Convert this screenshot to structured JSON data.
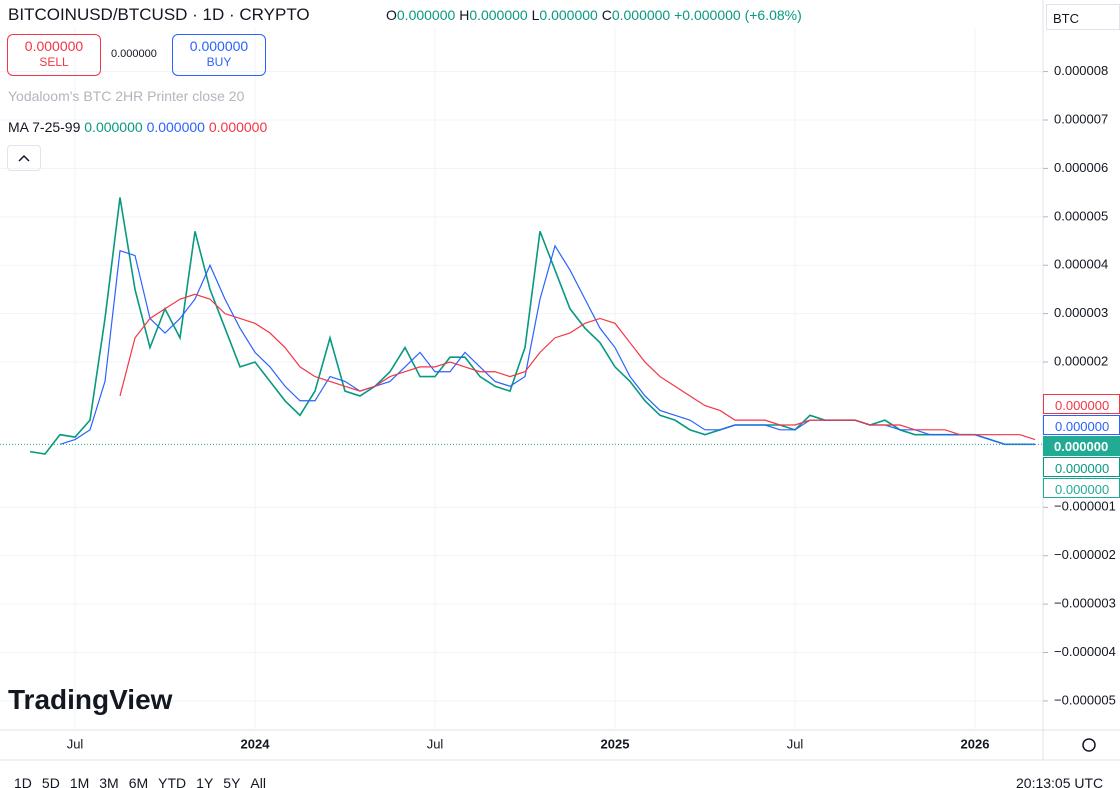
{
  "header": {
    "symbol": "BITCOINUSD/BTCUSD · 1D · CRYPTO",
    "ohlc": [
      {
        "label": "O",
        "value": "0.000000"
      },
      {
        "label": "H",
        "value": "0.000000"
      },
      {
        "label": "L",
        "value": "0.000000"
      },
      {
        "label": "C",
        "value": "0.000000"
      }
    ],
    "change": "+0.000000 (+6.08%)",
    "sell": {
      "price": "0.000000",
      "label": "SELL"
    },
    "spread": "0.000000",
    "buy": {
      "price": "0.000000",
      "label": "BUY"
    },
    "indicator": "Yodaloom's BTC 2HR Printer close 20",
    "ma": {
      "title": "MA 7-25-99",
      "values": [
        "0.000000",
        "0.000000",
        "0.000000"
      ]
    },
    "currency": "BTC",
    "watermark": "TradingView"
  },
  "price_scale": [
    "0.000000",
    "0.000000",
    "0.000000",
    "0.000000",
    "0.000000"
  ],
  "footer": {
    "timeframes": [
      "1D",
      "5D",
      "1M",
      "3M",
      "6M",
      "YTD",
      "1Y",
      "5Y",
      "All"
    ],
    "clock": "20:13:05 UTC"
  },
  "chart_data": {
    "type": "line",
    "categories": [
      null,
      null,
      null,
      "Jul",
      null,
      null,
      null,
      null,
      null,
      null,
      null,
      null,
      null,
      null,
      null,
      "2024",
      null,
      null,
      null,
      null,
      null,
      null,
      null,
      null,
      null,
      null,
      null,
      "Jul",
      null,
      null,
      null,
      null,
      null,
      null,
      null,
      null,
      null,
      null,
      null,
      "2025",
      null,
      null,
      null,
      null,
      null,
      null,
      null,
      null,
      null,
      null,
      null,
      "Jul",
      null,
      null,
      null,
      null,
      null,
      null,
      null,
      null,
      null,
      null,
      null,
      "2026",
      null,
      null,
      null,
      null
    ],
    "series": [
      {
        "color": "#089981",
        "values": [
          1.5e-07,
          1e-07,
          5e-07,
          4.5e-07,
          8e-07,
          2.9e-06,
          5.4e-06,
          3.5e-06,
          2.3e-06,
          3.1e-06,
          2.5e-06,
          4.7e-06,
          3.5e-06,
          2.7e-06,
          1.9e-06,
          2e-06,
          1.6e-06,
          1.2e-06,
          9e-07,
          1.4e-06,
          2.5e-06,
          1.4e-06,
          1.3e-06,
          1.5e-06,
          1.8e-06,
          2.3e-06,
          1.7e-06,
          1.7e-06,
          2.1e-06,
          2.1e-06,
          1.7e-06,
          1.5e-06,
          1.4e-06,
          2.3e-06,
          4.7e-06,
          3.9e-06,
          3.1e-06,
          2.7e-06,
          2.4e-06,
          1.9e-06,
          1.6e-06,
          1.2e-06,
          9e-07,
          8e-07,
          6e-07,
          5e-07,
          6e-07,
          7e-07,
          7e-07,
          7e-07,
          7e-07,
          6e-07,
          9e-07,
          8e-07,
          8e-07,
          8e-07,
          7e-07,
          8e-07,
          6e-07,
          5e-07,
          5e-07,
          5e-07,
          5e-07,
          5e-07,
          4e-07,
          3e-07,
          3e-07,
          3e-07
        ]
      },
      {
        "color": "#2962ff",
        "values": [
          null,
          null,
          3e-07,
          4e-07,
          6e-07,
          1.6e-06,
          4.3e-06,
          4.2e-06,
          2.9e-06,
          2.6e-06,
          2.9e-06,
          3.3e-06,
          4e-06,
          3.3e-06,
          2.7e-06,
          2.2e-06,
          1.9e-06,
          1.5e-06,
          1.2e-06,
          1.2e-06,
          1.7e-06,
          1.6e-06,
          1.4e-06,
          1.5e-06,
          1.6e-06,
          1.9e-06,
          2.2e-06,
          1.8e-06,
          1.8e-06,
          2.2e-06,
          1.9e-06,
          1.6e-06,
          1.5e-06,
          1.7e-06,
          3.3e-06,
          4.4e-06,
          3.9e-06,
          3.3e-06,
          2.7e-06,
          2.3e-06,
          1.7e-06,
          1.3e-06,
          1e-06,
          9e-07,
          8e-07,
          6e-07,
          6e-07,
          7e-07,
          7e-07,
          7e-07,
          6e-07,
          6e-07,
          8e-07,
          8e-07,
          8e-07,
          8e-07,
          7e-07,
          7e-07,
          6e-07,
          6e-07,
          5e-07,
          5e-07,
          5e-07,
          5e-07,
          4e-07,
          3e-07,
          3e-07,
          3e-07
        ]
      },
      {
        "color": "#f23645",
        "values": [
          null,
          null,
          null,
          null,
          null,
          null,
          1.3e-06,
          2.5e-06,
          2.9e-06,
          3.1e-06,
          3.3e-06,
          3.4e-06,
          3.3e-06,
          3e-06,
          2.9e-06,
          2.8e-06,
          2.6e-06,
          2.3e-06,
          1.9e-06,
          1.7e-06,
          1.6e-06,
          1.5e-06,
          1.4e-06,
          1.5e-06,
          1.7e-06,
          1.8e-06,
          1.9e-06,
          1.9e-06,
          2e-06,
          1.9e-06,
          1.8e-06,
          1.8e-06,
          1.7e-06,
          1.8e-06,
          2.2e-06,
          2.5e-06,
          2.6e-06,
          2.8e-06,
          2.9e-06,
          2.8e-06,
          2.4e-06,
          2e-06,
          1.7e-06,
          1.5e-06,
          1.3e-06,
          1.1e-06,
          1e-06,
          8e-07,
          8e-07,
          8e-07,
          7e-07,
          7e-07,
          8e-07,
          8e-07,
          8e-07,
          8e-07,
          7e-07,
          7e-07,
          7e-07,
          6e-07,
          6e-07,
          6e-07,
          5e-07,
          5e-07,
          5e-07,
          5e-07,
          5e-07,
          4e-07
        ]
      }
    ],
    "ylim": [
      -5.6e-06,
      8.9e-06
    ],
    "yticks": [
      8e-06,
      7e-06,
      6e-06,
      5e-06,
      4e-06,
      3e-06,
      2e-06,
      {
        "value": -1e-06,
        "label": "−0.000001"
      },
      {
        "value": -2e-06,
        "label": "−0.000002"
      },
      {
        "value": -3e-06,
        "label": "−0.000003"
      },
      {
        "value": -4e-06,
        "label": "−0.000004"
      },
      {
        "value": -5e-06,
        "label": "−0.000005"
      }
    ],
    "grid": true
  }
}
